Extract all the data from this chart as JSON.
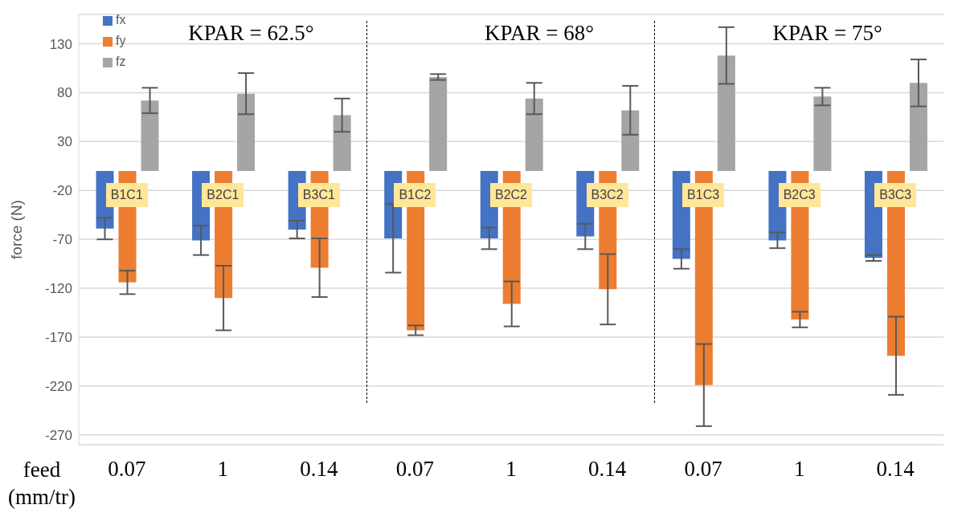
{
  "chart_data": {
    "type": "bar",
    "xlabel": "feed (mm/tr)",
    "ylabel": "force (N)",
    "categories": [
      "0.07",
      "1",
      "0.14",
      "0.07",
      "1",
      "0.14",
      "0.07",
      "1",
      "0.14"
    ],
    "series": [
      {
        "name": "fx",
        "color": "#4472c4",
        "values": [
          -59,
          -71,
          -60,
          -69,
          -69,
          -67,
          -90,
          -71,
          -89
        ],
        "errors": [
          11,
          15,
          9,
          35,
          11,
          13,
          10,
          8,
          3
        ]
      },
      {
        "name": "fy",
        "color": "#ed7d31",
        "values": [
          -114,
          -130,
          -99,
          -163,
          -136,
          -121,
          -219,
          -152,
          -189
        ],
        "errors": [
          12,
          33,
          30,
          5,
          23,
          36,
          42,
          8,
          40
        ]
      },
      {
        "name": "fz",
        "color": "#a5a5a5",
        "values": [
          72,
          79,
          57,
          96,
          74,
          62,
          118,
          76,
          90
        ],
        "errors": [
          13,
          21,
          17,
          3,
          16,
          25,
          29,
          9,
          24
        ]
      }
    ],
    "ylim": [
      -280,
      160
    ],
    "yticks": [
      -270,
      -220,
      -170,
      -120,
      -70,
      -20,
      30,
      80,
      130
    ],
    "annotations": [
      "KPAR = 62.5°",
      "KPAR = 68°",
      "KPAR = 75°",
      "B1C1",
      "B2C1",
      "B3C1",
      "B1C2",
      "B2C2",
      "B3C2",
      "B1C3",
      "B2C3",
      "B3C3"
    ],
    "grid": "y",
    "legend": "top left"
  }
}
